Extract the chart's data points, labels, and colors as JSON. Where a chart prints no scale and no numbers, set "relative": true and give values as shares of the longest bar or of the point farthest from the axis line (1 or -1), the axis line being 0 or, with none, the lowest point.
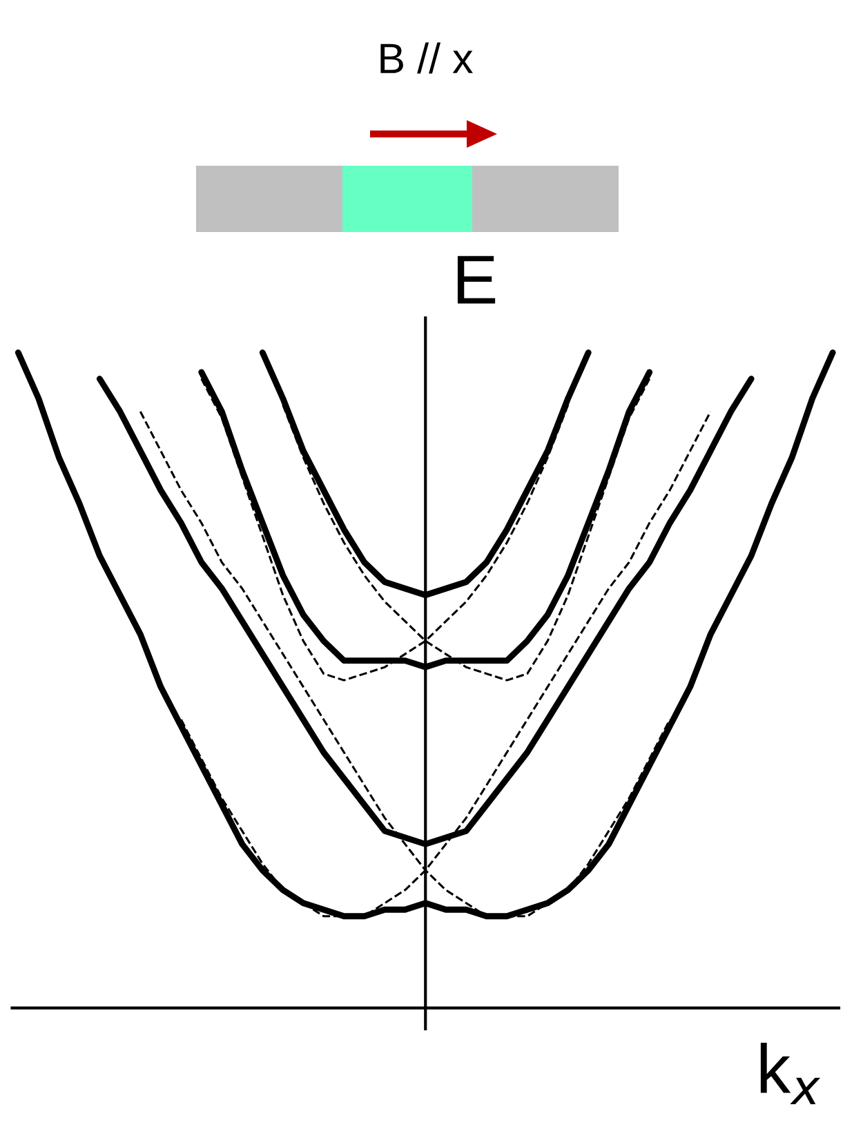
{
  "chart_data": {
    "type": "line",
    "title": "B // x",
    "xlabel": "k$_{x}$",
    "ylabel": "E",
    "relative": true,
    "legend": false,
    "categories": [
      null,
      null,
      null,
      null,
      null,
      null,
      null,
      null,
      null,
      null,
      null,
      null,
      null,
      null,
      null,
      null,
      null,
      null,
      null,
      null,
      null,
      null,
      null,
      null,
      null,
      null,
      null,
      null,
      null,
      null,
      null,
      null,
      null,
      null,
      null,
      null,
      null,
      null,
      null,
      null,
      null
    ],
    "series": [
      {
        "color": "#000000",
        "line_style": "solid",
        "values": [
          1.0,
          0.93,
          0.84,
          0.77,
          0.69,
          0.63,
          0.57,
          0.49,
          0.43,
          0.37,
          0.31,
          0.25,
          0.21,
          0.18,
          0.16,
          0.15,
          0.14,
          0.14,
          0.15,
          0.15,
          0.16,
          0.15,
          0.15,
          0.14,
          0.14,
          0.15,
          0.16,
          0.18,
          0.21,
          0.25,
          0.31,
          0.37,
          0.43,
          0.49,
          0.57,
          0.63,
          0.69,
          0.77,
          0.84,
          0.93,
          1.0
        ]
      },
      {
        "color": "#000000",
        "line_style": "solid",
        "values": [
          null,
          null,
          null,
          null,
          0.96,
          0.91,
          0.85,
          0.79,
          0.74,
          0.68,
          0.64,
          0.59,
          0.54,
          0.49,
          0.44,
          0.39,
          0.35,
          0.31,
          0.27,
          0.26,
          0.25,
          0.26,
          0.27,
          0.31,
          0.35,
          0.39,
          0.44,
          0.49,
          0.54,
          0.59,
          0.64,
          0.68,
          0.74,
          0.79,
          0.85,
          0.91,
          0.96,
          null,
          null,
          null,
          null
        ]
      },
      {
        "color": "#000000",
        "line_style": "solid",
        "values": [
          null,
          null,
          null,
          null,
          null,
          null,
          null,
          null,
          null,
          0.97,
          0.91,
          0.82,
          0.74,
          0.66,
          0.6,
          0.56,
          0.53,
          0.53,
          0.53,
          0.53,
          0.52,
          0.53,
          0.53,
          0.53,
          0.53,
          0.56,
          0.6,
          0.66,
          0.74,
          0.82,
          0.91,
          0.97,
          null,
          null,
          null,
          null,
          null,
          null,
          null,
          null,
          null
        ]
      },
      {
        "color": "#000000",
        "line_style": "solid",
        "values": [
          null,
          null,
          null,
          null,
          null,
          null,
          null,
          null,
          null,
          null,
          null,
          null,
          1.0,
          0.93,
          0.85,
          0.79,
          0.73,
          0.68,
          0.65,
          0.64,
          0.63,
          0.64,
          0.65,
          0.68,
          0.73,
          0.79,
          0.85,
          0.93,
          1.0,
          null,
          null,
          null,
          null,
          null,
          null,
          null,
          null,
          null,
          null,
          null,
          null
        ]
      },
      {
        "color": "#000000",
        "line_style": "dashed",
        "values": [
          null,
          null,
          null,
          null,
          null,
          null,
          null,
          null,
          0.44,
          0.38,
          0.32,
          0.27,
          0.22,
          0.18,
          0.16,
          0.14,
          0.14,
          0.14,
          0.16,
          0.18,
          0.21,
          0.25,
          0.29,
          0.34,
          0.39,
          0.44,
          0.49,
          0.54,
          0.59,
          0.64,
          0.68,
          0.74,
          0.79,
          0.85,
          0.91,
          null,
          null,
          null,
          null,
          null,
          null
        ]
      },
      {
        "color": "#000000",
        "line_style": "dashed",
        "values": [
          null,
          null,
          null,
          null,
          null,
          null,
          0.91,
          0.85,
          0.79,
          0.74,
          0.68,
          0.64,
          0.59,
          0.54,
          0.49,
          0.44,
          0.39,
          0.34,
          0.29,
          0.25,
          0.21,
          0.18,
          0.16,
          0.14,
          0.14,
          0.14,
          0.16,
          0.18,
          0.22,
          0.27,
          0.32,
          0.38,
          0.44,
          null,
          null,
          null,
          null,
          null,
          null,
          null,
          null
        ]
      },
      {
        "color": "#000000",
        "line_style": "dashed",
        "values": [
          null,
          null,
          null,
          null,
          null,
          null,
          null,
          null,
          null,
          0.96,
          0.9,
          0.81,
          0.72,
          0.63,
          0.56,
          0.51,
          0.5,
          0.51,
          0.52,
          0.54,
          0.56,
          0.59,
          0.62,
          0.66,
          0.71,
          0.77,
          0.84,
          0.92,
          null,
          null,
          null,
          null,
          null,
          null,
          null,
          null,
          null,
          null,
          null,
          null,
          null
        ]
      },
      {
        "color": "#000000",
        "line_style": "dashed",
        "values": [
          null,
          null,
          null,
          null,
          null,
          null,
          null,
          null,
          null,
          null,
          null,
          null,
          null,
          0.92,
          0.84,
          0.77,
          0.71,
          0.66,
          0.62,
          0.59,
          0.56,
          0.54,
          0.52,
          0.51,
          0.5,
          0.51,
          0.56,
          0.63,
          0.72,
          0.81,
          0.9,
          0.96,
          null,
          null,
          null,
          null,
          null,
          null,
          null,
          null,
          null
        ]
      }
    ]
  }
}
